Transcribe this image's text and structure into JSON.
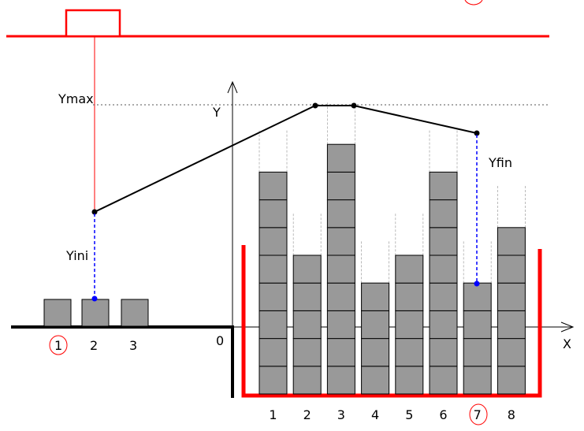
{
  "colors": {
    "accent": "#ff0000",
    "box": "#999999",
    "marker": "#0000ff",
    "ink": "#000000"
  },
  "labels": {
    "ymax": "Ymax",
    "y_axis": "Y",
    "x_axis": "X",
    "yfin": "Yfin",
    "yini": "Yini",
    "origin": "0"
  },
  "source_labels": [
    "1",
    "2",
    "3"
  ],
  "stack_labels": [
    "1",
    "2",
    "3",
    "4",
    "5",
    "6",
    "7",
    "8"
  ],
  "stack_heights": [
    8,
    5,
    9,
    4,
    5,
    8,
    4,
    6
  ],
  "circled": {
    "source": "1",
    "stack": "7"
  }
}
